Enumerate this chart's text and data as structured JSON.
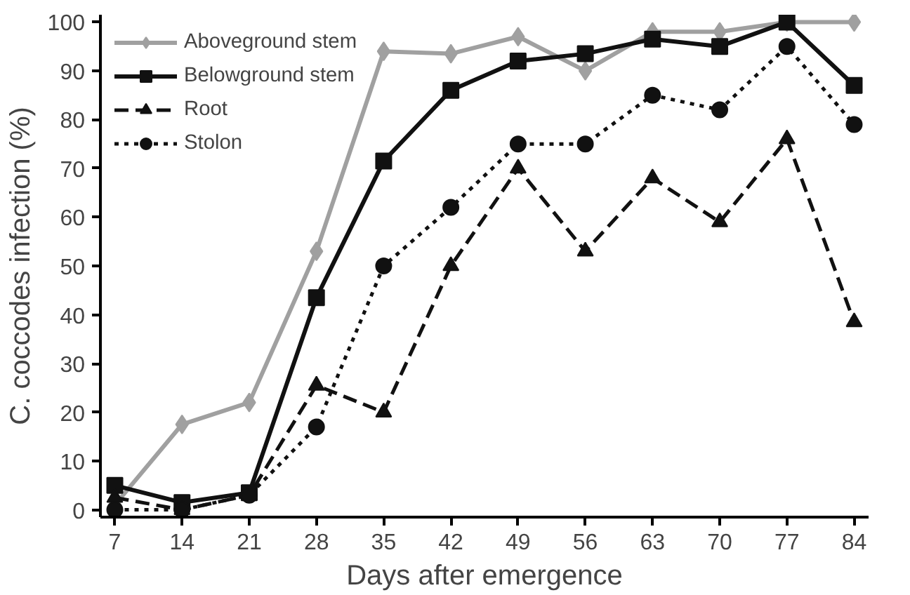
{
  "chart_data": {
    "type": "line",
    "xlabel": "Days after emergence",
    "ylabel": "C. coccodes infection (%)",
    "x": [
      7,
      14,
      21,
      28,
      35,
      42,
      49,
      56,
      63,
      70,
      77,
      84
    ],
    "xlim": [
      5.5,
      85.5
    ],
    "xticks": [
      7,
      14,
      21,
      28,
      35,
      42,
      49,
      56,
      63,
      70,
      77,
      84
    ],
    "ylim": [
      -1.5,
      101.5
    ],
    "yticks": [
      0,
      10,
      20,
      30,
      40,
      50,
      60,
      70,
      80,
      90,
      100
    ],
    "grid": false,
    "legend": "top left",
    "series": [
      {
        "name": "Aboveground stem",
        "color": "#a0a0a0",
        "marker": "diamond",
        "line_style": "solid",
        "values": [
          1,
          17.5,
          22,
          53,
          94,
          93.5,
          97,
          90,
          98,
          98,
          100,
          100
        ]
      },
      {
        "name": "Belowground stem",
        "color": "#111111",
        "marker": "square",
        "line_style": "solid",
        "values": [
          5,
          1.5,
          3.5,
          43.5,
          71.5,
          86,
          92,
          93.5,
          96.5,
          95,
          100,
          87
        ]
      },
      {
        "name": "Root",
        "color": "#111111",
        "marker": "triangle",
        "line_style": "dashed",
        "values": [
          2.5,
          0,
          3,
          25.5,
          20,
          50,
          70,
          53,
          68,
          59,
          76,
          38.5
        ]
      },
      {
        "name": "Stolon",
        "color": "#111111",
        "marker": "circle",
        "line_style": "dotted",
        "values": [
          0,
          0,
          3,
          17,
          50,
          62,
          75,
          75,
          85,
          82,
          95,
          79
        ]
      }
    ]
  }
}
